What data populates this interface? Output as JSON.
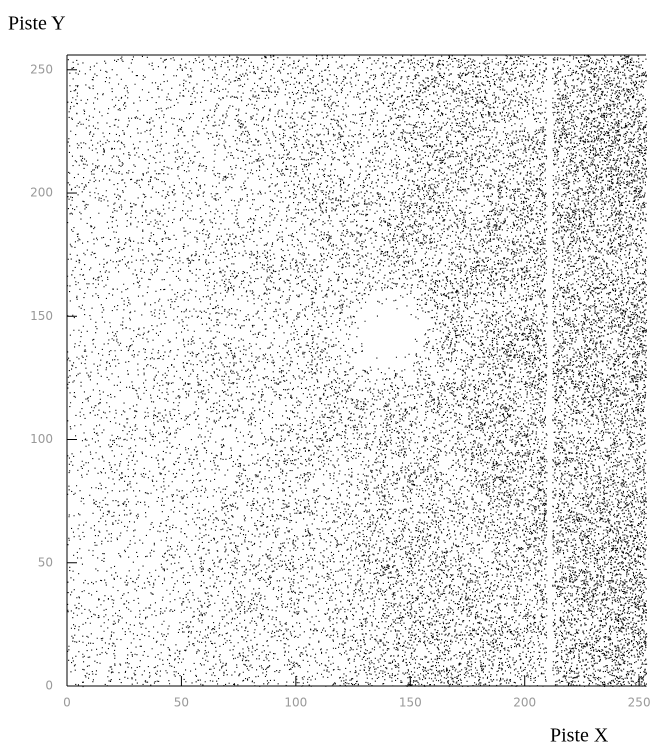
{
  "chart_data": {
    "type": "scatter",
    "x_label": "Piste X",
    "y_label": "Piste Y",
    "xlim": [
      0,
      253
    ],
    "ylim": [
      0,
      256
    ],
    "xticks": [
      0,
      50,
      100,
      150,
      200,
      250
    ],
    "yticks": [
      0,
      50,
      100,
      150,
      200,
      250
    ],
    "color": "#000000"
  }
}
